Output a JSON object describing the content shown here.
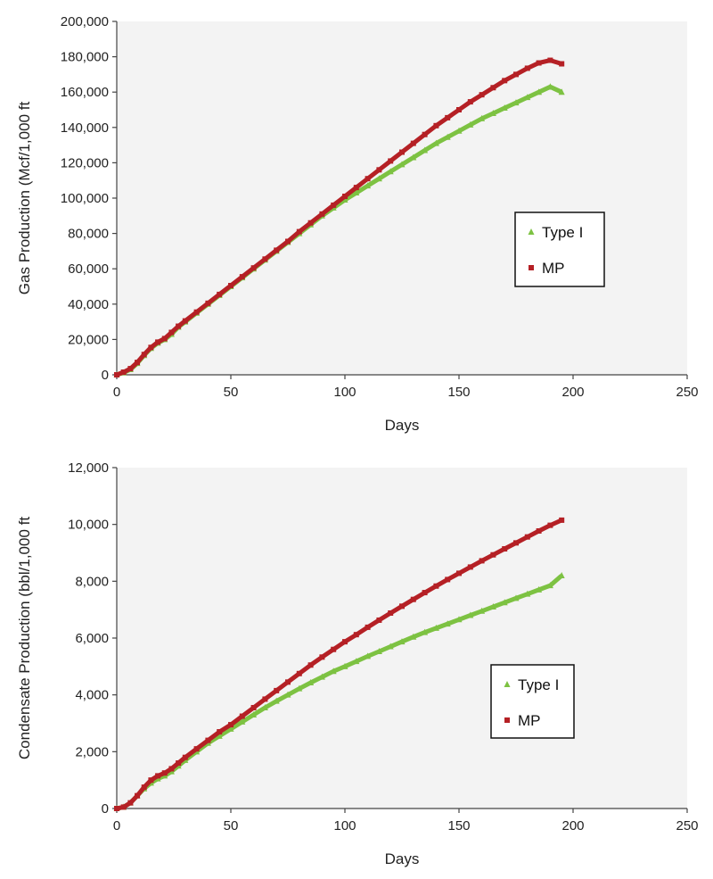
{
  "chart_data": [
    {
      "type": "scatter",
      "title": "",
      "xlabel": "Days",
      "ylabel": "Gas Production (Mcf/1,000 ft",
      "xlim": [
        0,
        250
      ],
      "ylim": [
        0,
        200000
      ],
      "xticks": [
        0,
        50,
        100,
        150,
        200,
        250
      ],
      "xtick_labels": [
        "0",
        "50",
        "100",
        "150",
        "200",
        "250"
      ],
      "yticks": [
        0,
        20000,
        40000,
        60000,
        80000,
        100000,
        120000,
        140000,
        160000,
        180000,
        200000
      ],
      "ytick_labels": [
        "0",
        "20,000",
        "40,000",
        "60,000",
        "80,000",
        "100,000",
        "120,000",
        "140,000",
        "160,000",
        "180,000",
        "200,000"
      ],
      "grid": false,
      "legend_position": "right",
      "series": [
        {
          "name": "Type I",
          "color": "#7dc242",
          "marker": "triangle",
          "x": [
            0,
            3,
            6,
            9,
            12,
            15,
            18,
            21,
            24,
            27,
            30,
            35,
            40,
            45,
            50,
            55,
            60,
            65,
            70,
            75,
            80,
            85,
            90,
            95,
            100,
            105,
            110,
            115,
            120,
            125,
            130,
            135,
            140,
            145,
            150,
            155,
            160,
            165,
            170,
            175,
            180,
            185,
            190,
            195
          ],
          "y": [
            0,
            1200,
            3000,
            6500,
            11000,
            15000,
            18000,
            20000,
            23000,
            27000,
            30000,
            35000,
            40000,
            45000,
            50000,
            55000,
            60000,
            65000,
            70000,
            75000,
            80000,
            85000,
            90000,
            94500,
            99000,
            103000,
            107000,
            111000,
            115000,
            119000,
            123000,
            127000,
            131000,
            134500,
            138000,
            141500,
            145000,
            148000,
            151000,
            154000,
            157000,
            160000,
            163000,
            160000
          ]
        },
        {
          "name": "MP",
          "color": "#b52025",
          "marker": "square",
          "x": [
            0,
            3,
            6,
            9,
            12,
            15,
            18,
            21,
            24,
            27,
            30,
            35,
            40,
            45,
            50,
            55,
            60,
            65,
            70,
            75,
            80,
            85,
            90,
            95,
            100,
            105,
            110,
            115,
            120,
            125,
            130,
            135,
            140,
            145,
            150,
            155,
            160,
            165,
            170,
            175,
            180,
            185,
            190,
            195
          ],
          "y": [
            0,
            1500,
            3500,
            7000,
            11500,
            15500,
            18500,
            20500,
            24000,
            27500,
            30500,
            35500,
            40500,
            45500,
            50500,
            55500,
            60500,
            65500,
            70500,
            75500,
            81000,
            86000,
            91000,
            96000,
            101000,
            106000,
            111000,
            116000,
            121000,
            126000,
            131000,
            136000,
            141000,
            145500,
            150000,
            154500,
            158500,
            162500,
            166500,
            170000,
            173500,
            176500,
            178000,
            176000
          ]
        }
      ]
    },
    {
      "type": "scatter",
      "title": "",
      "xlabel": "Days",
      "ylabel": "Condensate Production (bbl/1,000 ft",
      "xlim": [
        0,
        250
      ],
      "ylim": [
        0,
        12000
      ],
      "xticks": [
        0,
        50,
        100,
        150,
        200,
        250
      ],
      "xtick_labels": [
        "0",
        "50",
        "100",
        "150",
        "200",
        "250"
      ],
      "yticks": [
        0,
        2000,
        4000,
        6000,
        8000,
        10000,
        12000
      ],
      "ytick_labels": [
        "0",
        "2,000",
        "4,000",
        "6,000",
        "8,000",
        "10,000",
        "12,000"
      ],
      "grid": false,
      "legend_position": "right",
      "series": [
        {
          "name": "Type I",
          "color": "#7dc242",
          "marker": "triangle",
          "x": [
            0,
            3,
            6,
            9,
            12,
            15,
            18,
            21,
            24,
            27,
            30,
            35,
            40,
            45,
            50,
            55,
            60,
            65,
            70,
            75,
            80,
            85,
            90,
            95,
            100,
            105,
            110,
            115,
            120,
            125,
            130,
            135,
            140,
            145,
            150,
            155,
            160,
            165,
            170,
            175,
            180,
            185,
            190,
            195
          ],
          "y": [
            0,
            50,
            200,
            450,
            700,
            900,
            1050,
            1150,
            1300,
            1500,
            1700,
            2000,
            2300,
            2550,
            2800,
            3050,
            3300,
            3550,
            3780,
            4000,
            4220,
            4430,
            4630,
            4830,
            5000,
            5180,
            5360,
            5530,
            5700,
            5870,
            6040,
            6200,
            6350,
            6500,
            6650,
            6800,
            6950,
            7100,
            7250,
            7400,
            7550,
            7700,
            7850,
            8200
          ]
        },
        {
          "name": "MP",
          "color": "#b52025",
          "marker": "square",
          "x": [
            0,
            3,
            6,
            9,
            12,
            15,
            18,
            21,
            24,
            27,
            30,
            35,
            40,
            45,
            50,
            55,
            60,
            65,
            70,
            75,
            80,
            85,
            90,
            95,
            100,
            105,
            110,
            115,
            120,
            125,
            130,
            135,
            140,
            145,
            150,
            155,
            160,
            165,
            170,
            175,
            180,
            185,
            190,
            195
          ],
          "y": [
            0,
            50,
            200,
            450,
            750,
            1000,
            1150,
            1250,
            1400,
            1600,
            1800,
            2100,
            2400,
            2700,
            2950,
            3250,
            3550,
            3850,
            4150,
            4450,
            4750,
            5050,
            5330,
            5600,
            5870,
            6120,
            6380,
            6630,
            6880,
            7120,
            7360,
            7600,
            7830,
            8060,
            8280,
            8500,
            8720,
            8930,
            9140,
            9350,
            9560,
            9770,
            9970,
            10150
          ]
        }
      ]
    }
  ]
}
